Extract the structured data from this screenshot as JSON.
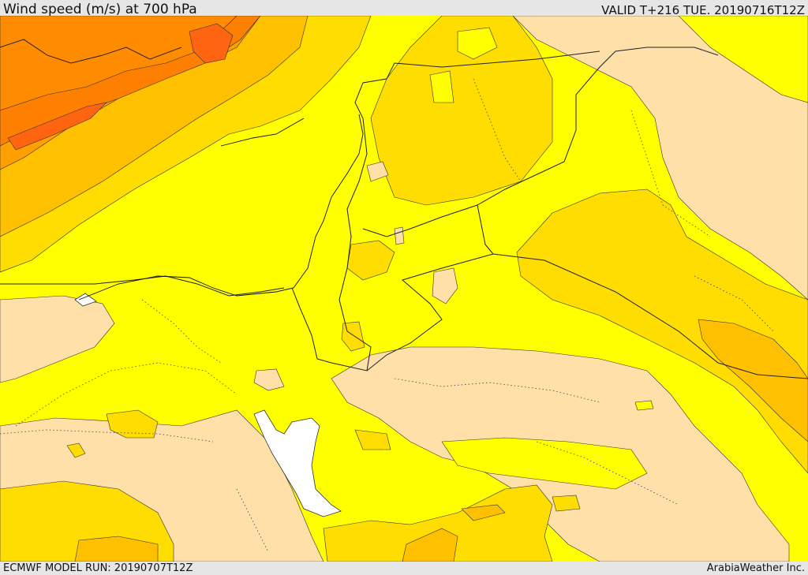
{
  "header": {
    "title": "Wind speed (m/s) at 700 hPa",
    "valid": "VALID T+216 TUE. 20190716T12Z"
  },
  "footer": {
    "model_run": "ECMWF MODEL RUN: 20190707T12Z",
    "credit": "ArabiaWeather Inc."
  },
  "map": {
    "variable": "wind speed",
    "pressure_level": "700 hPa",
    "color_scale": [
      {
        "band": "lowest",
        "color": "#ffe0a8"
      },
      {
        "band": "low",
        "color": "#ffff00"
      },
      {
        "band": "moderate",
        "color": "#ffdd00"
      },
      {
        "band": "moderate-high",
        "color": "#ffc000"
      },
      {
        "band": "high",
        "color": "#ffa000"
      },
      {
        "band": "higher",
        "color": "#ff8000"
      },
      {
        "band": "highest",
        "color": "#ff6410"
      }
    ],
    "land_outside_domain_color": "#ffffff"
  }
}
